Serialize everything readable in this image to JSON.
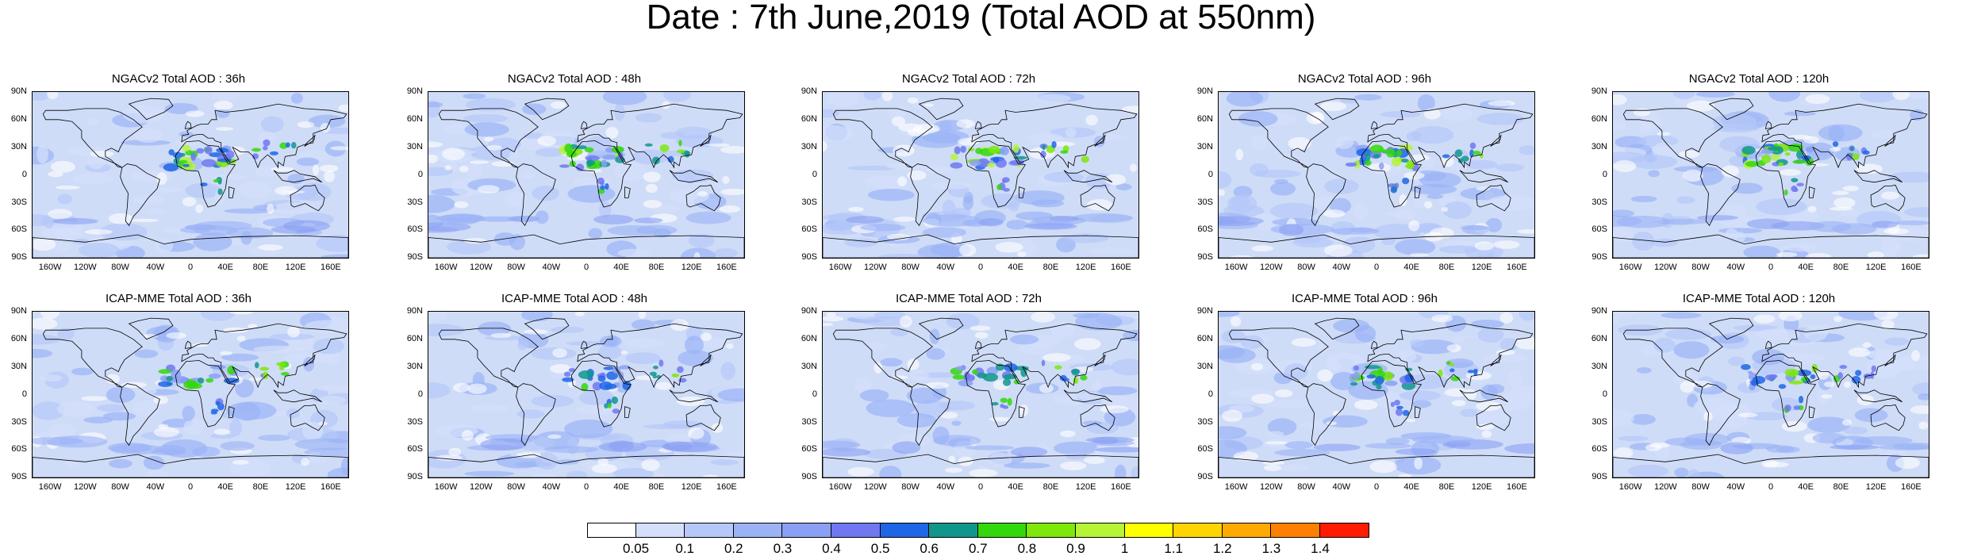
{
  "title": "Date : 7th June,2019 (Total AOD at 550nm)",
  "panels": [
    {
      "title": "NGACv2 Total AOD : 36h",
      "seed": 11,
      "dust": 1.0
    },
    {
      "title": "NGACv2 Total AOD : 48h",
      "seed": 23,
      "dust": 0.95
    },
    {
      "title": "NGACv2 Total AOD : 72h",
      "seed": 37,
      "dust": 1.05
    },
    {
      "title": "NGACv2 Total AOD : 96h",
      "seed": 41,
      "dust": 1.0
    },
    {
      "title": "NGACv2 Total AOD : 120h",
      "seed": 53,
      "dust": 0.95
    },
    {
      "title": "ICAP-MME Total AOD : 36h",
      "seed": 61,
      "dust": 0.75
    },
    {
      "title": "ICAP-MME Total AOD : 48h",
      "seed": 73,
      "dust": 0.7
    },
    {
      "title": "ICAP-MME Total AOD : 72h",
      "seed": 89,
      "dust": 0.72
    },
    {
      "title": "ICAP-MME Total AOD : 96h",
      "seed": 97,
      "dust": 0.74
    },
    {
      "title": "ICAP-MME Total AOD : 120h",
      "seed": 101,
      "dust": 0.78
    }
  ],
  "lat_ticks": [
    "90N",
    "60N",
    "30N",
    "0",
    "30S",
    "60S",
    "90S"
  ],
  "lon_ticks": [
    "160W",
    "120W",
    "80W",
    "40W",
    "0",
    "40E",
    "80E",
    "120E",
    "160E"
  ],
  "colorbar": {
    "colors": [
      "#ffffff",
      "#d4e0fb",
      "#b5c8f8",
      "#9bb3f6",
      "#8aa0f4",
      "#6f78f0",
      "#1f66e6",
      "#11968c",
      "#33d80c",
      "#7ee80a",
      "#b6f438",
      "#ffff00",
      "#ffd400",
      "#ffaa00",
      "#ff8000",
      "#ff1c00"
    ],
    "labels": [
      "0.05",
      "0.1",
      "0.2",
      "0.3",
      "0.4",
      "0.5",
      "0.6",
      "0.7",
      "0.8",
      "0.9",
      "1",
      "1.1",
      "1.2",
      "1.3",
      "1.4"
    ]
  }
}
